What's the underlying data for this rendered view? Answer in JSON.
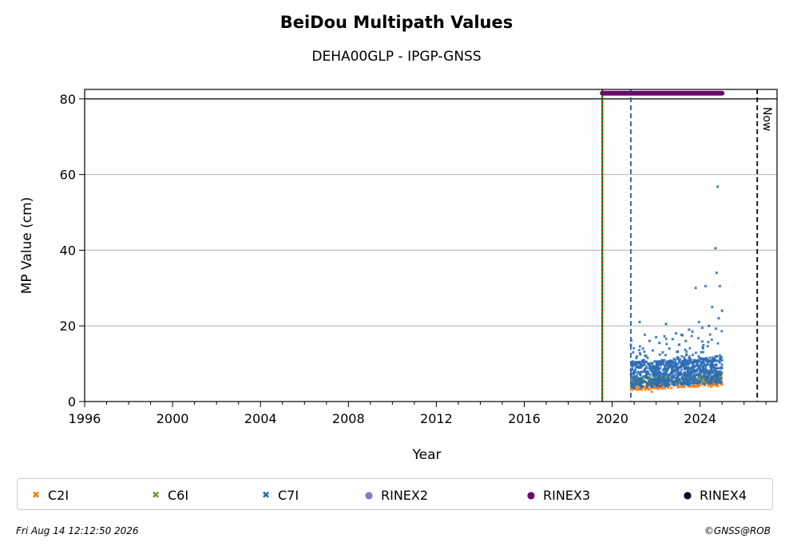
{
  "chart_data": {
    "type": "scatter",
    "title": "BeiDou Multipath Values",
    "subtitle": "DEHA00GLP - IPGP-GNSS",
    "xlabel": "Year",
    "ylabel": "MP Value (cm)",
    "xlim": [
      1996,
      2027.5
    ],
    "ylim": [
      0,
      82.5
    ],
    "xticks": [
      1996,
      2000,
      2004,
      2008,
      2012,
      2016,
      2020,
      2024
    ],
    "yticks": [
      0,
      20,
      40,
      60,
      80
    ],
    "grid": "y-major",
    "legend_position": "bottom",
    "annotations": [
      {
        "text": "Now",
        "x": 2026.6
      }
    ],
    "event_lines": [
      {
        "x": 2019.55,
        "color": "#008000",
        "style": "solid"
      },
      {
        "x": 2019.55,
        "color": "#cc0000",
        "style": "dotted"
      },
      {
        "x": 2020.85,
        "color": "#1560bd",
        "style": "dashed"
      },
      {
        "x": 2026.6,
        "color": "#000000",
        "style": "dashed"
      }
    ],
    "reference_line": {
      "y": 80,
      "color": "#000000"
    },
    "rinex3_bar": {
      "x_start": 2019.55,
      "x_end": 2025.0,
      "y": 81.5
    },
    "series": [
      {
        "name": "C2I",
        "marker": "x",
        "color": "#ff7f0e",
        "x": [
          2020.9,
          2021.2,
          2021.5,
          2021.8,
          2022.1,
          2022.4,
          2022.7,
          2023.0,
          2023.3,
          2023.6,
          2023.9,
          2024.2,
          2024.5,
          2024.8,
          2025.0
        ],
        "y": [
          3.5,
          3.2,
          3.4,
          2.6,
          3.3,
          3.5,
          3.6,
          3.8,
          3.9,
          4.1,
          4.0,
          4.2,
          3.9,
          4.1,
          4.5
        ]
      },
      {
        "name": "C6I",
        "marker": "x",
        "color": "#6a9e3a",
        "x": [
          2020.9,
          2021.3,
          2021.7,
          2022.1,
          2022.5,
          2022.9,
          2023.3,
          2023.7,
          2024.1,
          2024.5,
          2024.9
        ],
        "y": [
          4.5,
          4.2,
          4.6,
          4.4,
          4.8,
          4.9,
          5.1,
          5.3,
          5.4,
          5.6,
          5.8
        ]
      },
      {
        "name": "C7I",
        "marker": "x",
        "color": "#2e6db4",
        "x": [
          2020.85,
          2020.95,
          2021.1,
          2021.25,
          2021.4,
          2021.55,
          2021.7,
          2021.85,
          2022.0,
          2022.15,
          2022.3,
          2022.45,
          2022.6,
          2022.75,
          2022.9,
          2023.05,
          2023.2,
          2023.35,
          2023.5,
          2023.65,
          2023.8,
          2023.95,
          2024.1,
          2024.25,
          2024.4,
          2024.55,
          2024.7,
          2024.75,
          2024.8,
          2024.85,
          2024.9,
          2025.0
        ],
        "y": [
          15.0,
          13.0,
          11.5,
          21.0,
          14.0,
          12.0,
          16.0,
          13.5,
          17.0,
          15.5,
          13.0,
          20.5,
          14.0,
          16.5,
          18.0,
          15.0,
          17.5,
          16.0,
          19.0,
          18.5,
          30.0,
          21.0,
          19.5,
          30.5,
          20.0,
          25.0,
          40.5,
          34.0,
          56.8,
          22.0,
          30.5,
          24.0
        ]
      },
      {
        "name": "RINEX2",
        "marker": "o",
        "color": "#8080c0",
        "x": [],
        "y": []
      },
      {
        "name": "RINEX3",
        "marker": "o",
        "color": "#6b0a6b",
        "x": [
          2019.55,
          2025.0
        ],
        "y": [
          81.5,
          81.5
        ]
      },
      {
        "name": "RINEX4",
        "marker": "o",
        "color": "#0a0a2a",
        "x": [],
        "y": []
      }
    ]
  },
  "legend": [
    {
      "label": "C2I",
      "marker": "✖",
      "color": "#ff7f0e"
    },
    {
      "label": "C6I",
      "marker": "✖",
      "color": "#6a9e3a"
    },
    {
      "label": "C7I",
      "marker": "✖",
      "color": "#2e6db4"
    },
    {
      "label": "RINEX2",
      "marker": "●",
      "color": "#8080c0"
    },
    {
      "label": "RINEX3",
      "marker": "●",
      "color": "#6b0a6b"
    },
    {
      "label": "RINEX4",
      "marker": "●",
      "color": "#0a0a2a"
    }
  ],
  "footer": {
    "timestamp": "Fri Aug 14 12:12:50 2026",
    "copyright": "©GNSS@ROB"
  }
}
